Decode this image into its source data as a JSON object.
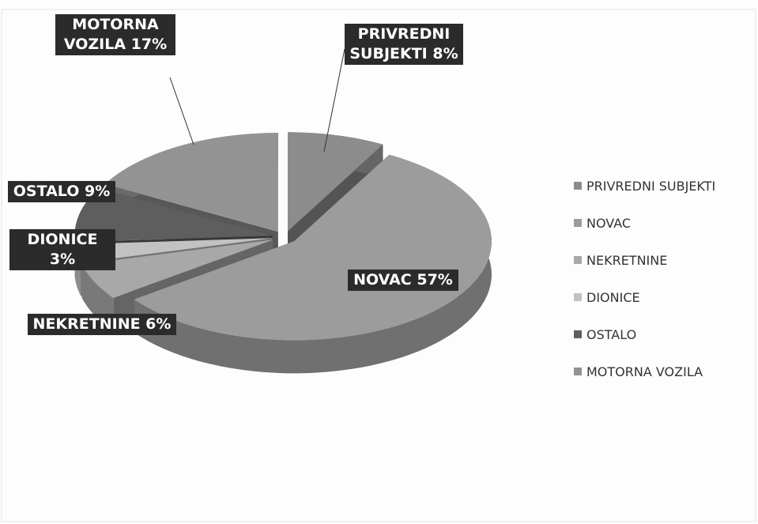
{
  "chart_data": {
    "type": "pie",
    "categories": [
      "PRIVREDNI SUBJEKTI",
      "NOVAC",
      "NEKRETNINE",
      "DIONICE",
      "OSTALO",
      "MOTORNA VOZILA"
    ],
    "values": [
      8,
      57,
      6,
      3,
      9,
      17
    ],
    "value_labels": [
      "PRIVREDNI SUBJEKTI 8%",
      "NOVAC 57%",
      "NEKRETNINE 6%",
      "DIONICE 3%",
      "OSTALO 9%",
      "MOTORNA VOZILA 17%"
    ],
    "colors": [
      "#8c8c8c",
      "#9c9c9c",
      "#a8a8a8",
      "#c2c2c2",
      "#5e5e5e",
      "#939393"
    ],
    "legend": "right"
  }
}
